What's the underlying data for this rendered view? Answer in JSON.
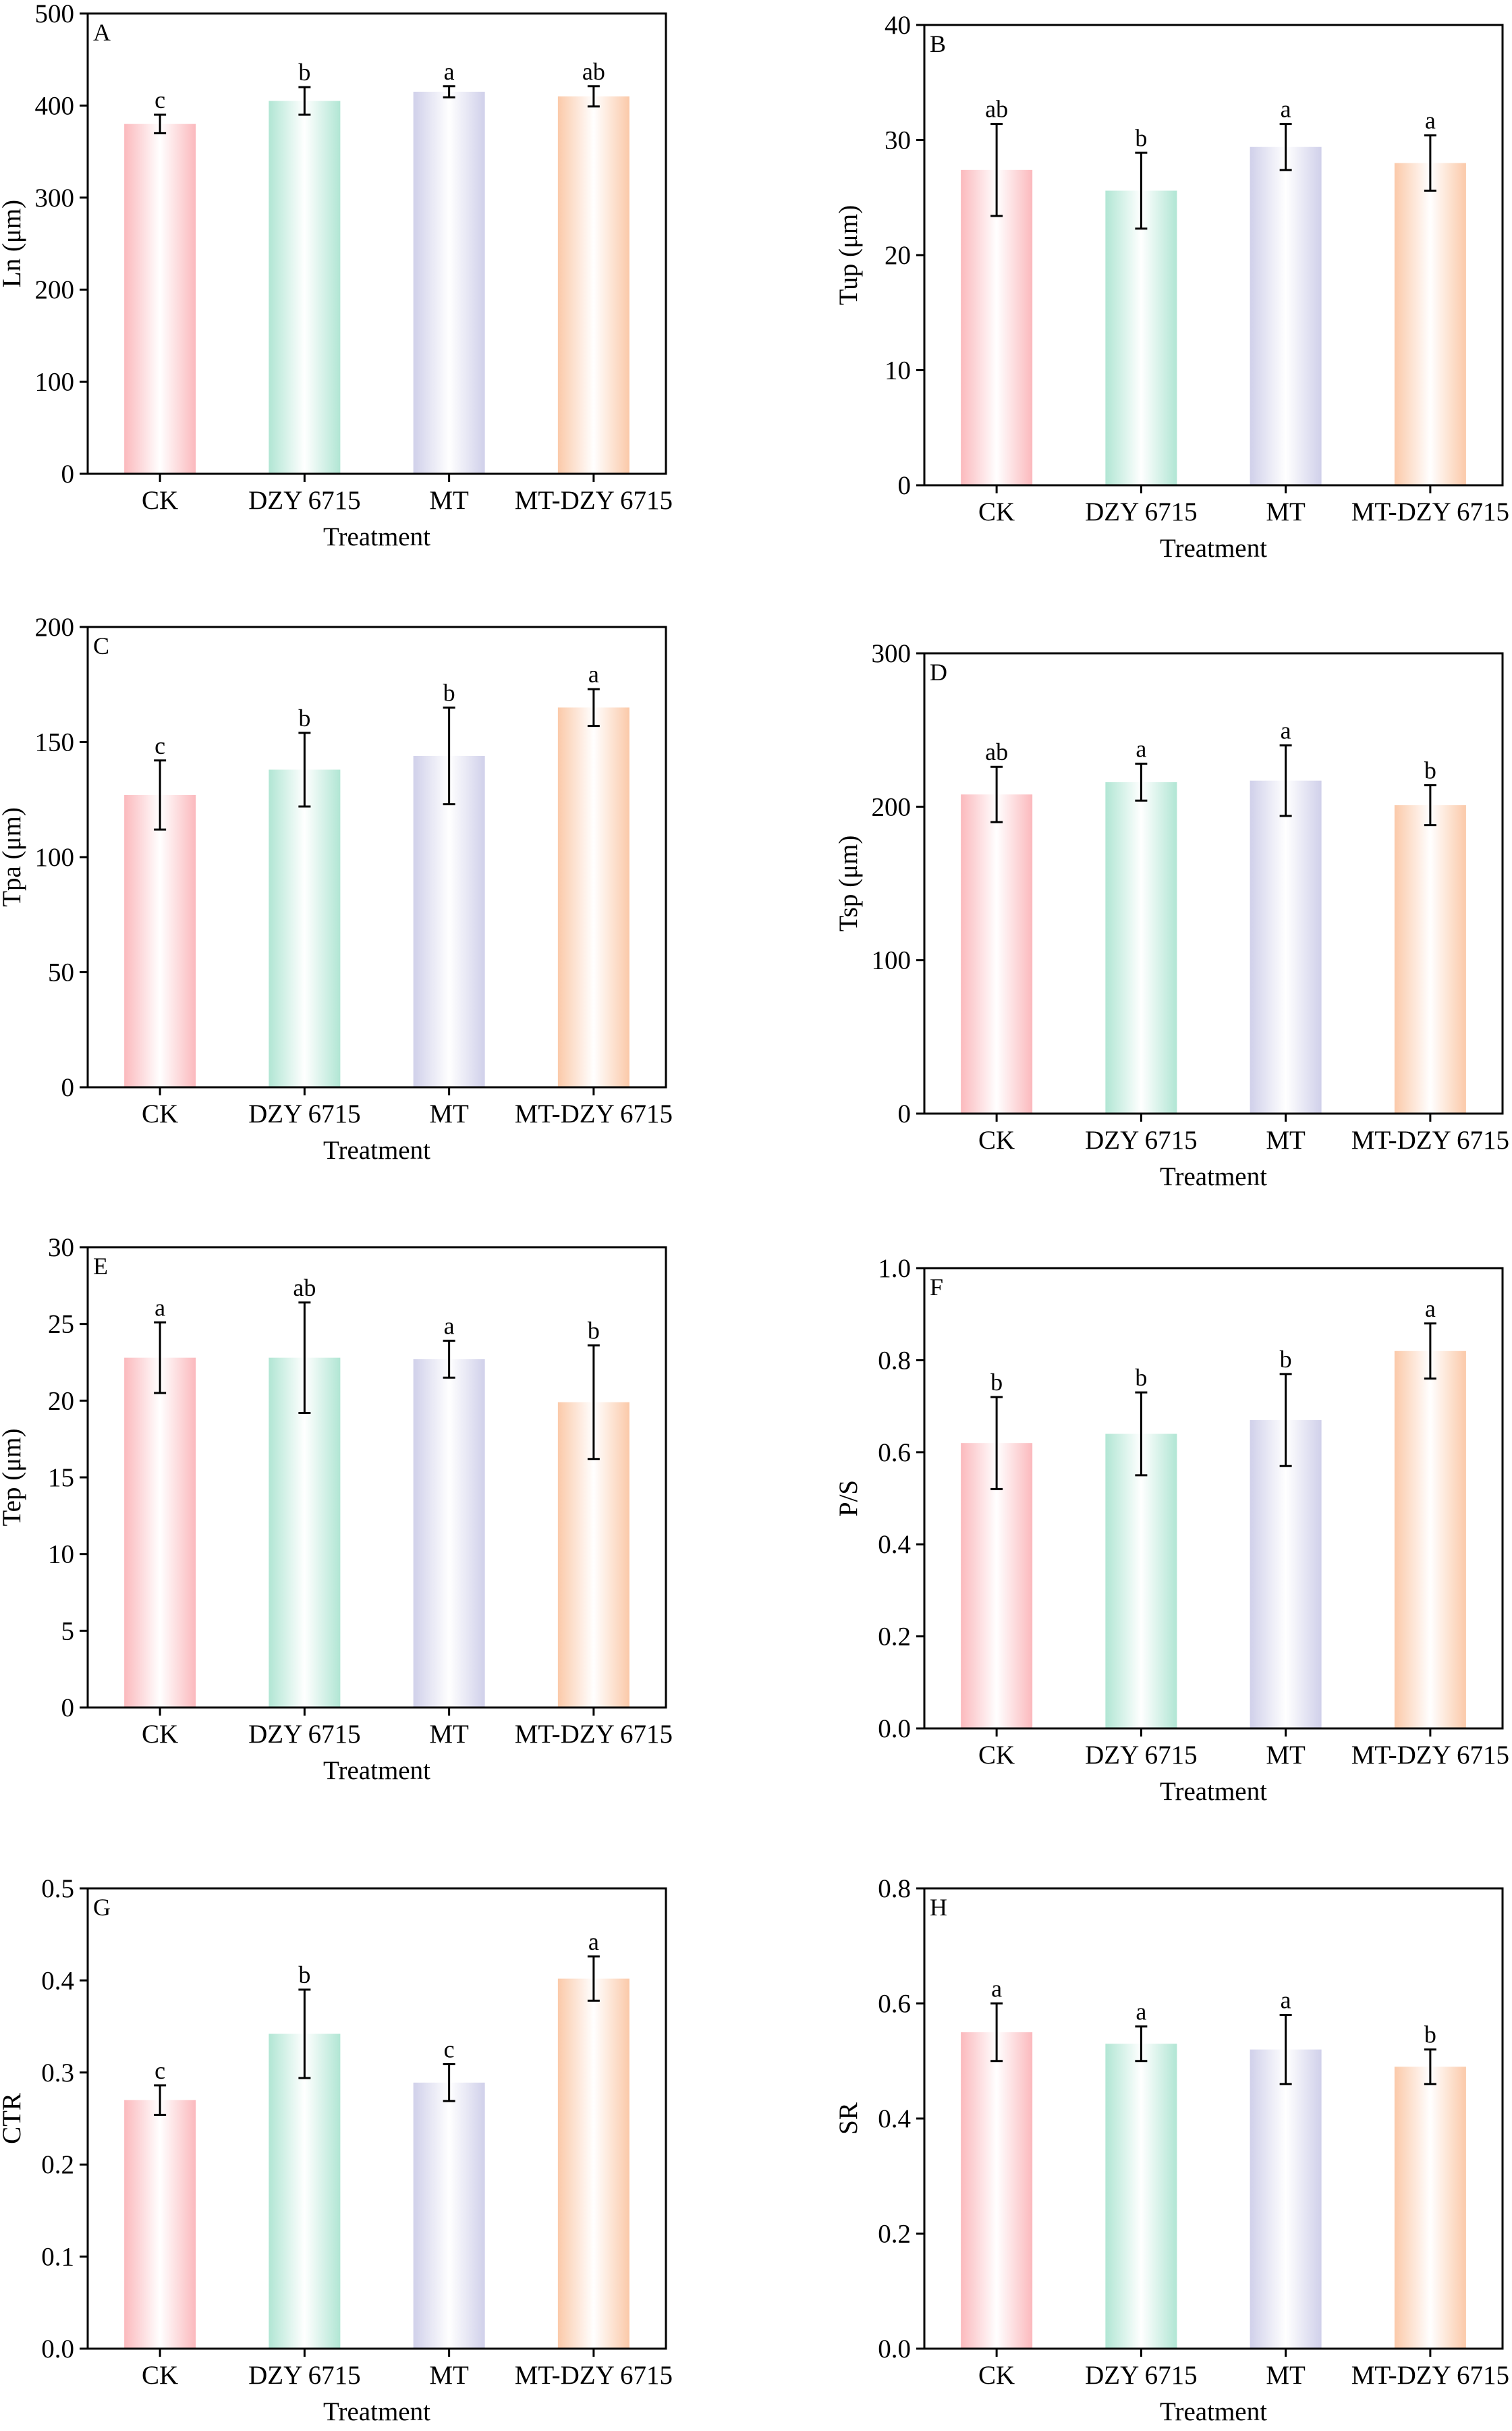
{
  "figure": {
    "colors": {
      "CK": "#fbb9bd",
      "DZY 6715": "#b1e6d4",
      "MT": "#d0d0ea",
      "MT-DZY 6715": "#fbc9a9",
      "axis": "#000000"
    }
  },
  "chart_data": [
    {
      "panel": "A",
      "type": "bar",
      "categories": [
        "CK",
        "DZY 6715",
        "MT",
        "MT-DZY 6715"
      ],
      "values": [
        380,
        405,
        415,
        410
      ],
      "errors": [
        10,
        15,
        6,
        11
      ],
      "letters": [
        "c",
        "b",
        "a",
        "ab"
      ],
      "ylabel": "Ln (μm)",
      "xlabel": "Treatment",
      "ylim": [
        0,
        500
      ],
      "yticks": [
        0,
        100,
        200,
        300,
        400,
        500
      ],
      "ytick_labels": [
        "0",
        "100",
        "200",
        "300",
        "400",
        "500"
      ]
    },
    {
      "panel": "B",
      "type": "bar",
      "categories": [
        "CK",
        "DZY 6715",
        "MT",
        "MT-DZY 6715"
      ],
      "values": [
        27.4,
        25.6,
        29.4,
        28.0
      ],
      "errors": [
        4.0,
        3.3,
        2.0,
        2.4
      ],
      "letters": [
        "ab",
        "b",
        "a",
        "a"
      ],
      "ylabel": "Tup (μm)",
      "xlabel": "Treatment",
      "ylim": [
        0,
        40
      ],
      "yticks": [
        0,
        10,
        20,
        30,
        40
      ],
      "ytick_labels": [
        "0",
        "10",
        "20",
        "30",
        "40"
      ]
    },
    {
      "panel": "C",
      "type": "bar",
      "categories": [
        "CK",
        "DZY 6715",
        "MT",
        "MT-DZY 6715"
      ],
      "values": [
        127,
        138,
        144,
        165
      ],
      "errors": [
        15,
        16,
        21,
        8
      ],
      "letters": [
        "c",
        "b",
        "b",
        "a"
      ],
      "ylabel": "Tpa (μm)",
      "xlabel": "Treatment",
      "ylim": [
        0,
        200
      ],
      "yticks": [
        0,
        50,
        100,
        150,
        200
      ],
      "ytick_labels": [
        "0",
        "50",
        "100",
        "150",
        "200"
      ]
    },
    {
      "panel": "D",
      "type": "bar",
      "categories": [
        "CK",
        "DZY 6715",
        "MT",
        "MT-DZY 6715"
      ],
      "values": [
        208,
        216,
        217,
        201
      ],
      "errors": [
        18,
        12,
        23,
        13
      ],
      "letters": [
        "ab",
        "a",
        "a",
        "b"
      ],
      "ylabel": "Tsp (μm)",
      "xlabel": "Treatment",
      "ylim": [
        0,
        300
      ],
      "yticks": [
        0,
        100,
        200,
        300
      ],
      "ytick_labels": [
        "0",
        "100",
        "200",
        "300"
      ]
    },
    {
      "panel": "E",
      "type": "bar",
      "categories": [
        "CK",
        "DZY 6715",
        "MT",
        "MT-DZY 6715"
      ],
      "values": [
        22.8,
        22.8,
        22.7,
        19.9
      ],
      "errors": [
        2.3,
        3.6,
        1.2,
        3.7
      ],
      "letters": [
        "a",
        "ab",
        "a",
        "b"
      ],
      "ylabel": "Tep (μm)",
      "xlabel": "Treatment",
      "ylim": [
        0,
        30
      ],
      "yticks": [
        0,
        5,
        10,
        15,
        20,
        25,
        30
      ],
      "ytick_labels": [
        "0",
        "5",
        "10",
        "15",
        "20",
        "25",
        "30"
      ]
    },
    {
      "panel": "F",
      "type": "bar",
      "categories": [
        "CK",
        "DZY 6715",
        "MT",
        "MT-DZY 6715"
      ],
      "values": [
        0.62,
        0.64,
        0.67,
        0.82
      ],
      "errors": [
        0.1,
        0.09,
        0.1,
        0.06
      ],
      "letters": [
        "b",
        "b",
        "b",
        "a"
      ],
      "ylabel": "P/S",
      "xlabel": "Treatment",
      "ylim": [
        0,
        1.0
      ],
      "yticks": [
        0,
        0.2,
        0.4,
        0.6,
        0.8,
        1.0
      ],
      "ytick_labels": [
        "0.0",
        "0.2",
        "0.4",
        "0.6",
        "0.8",
        "1.0"
      ]
    },
    {
      "panel": "G",
      "type": "bar",
      "categories": [
        "CK",
        "DZY 6715",
        "MT",
        "MT-DZY 6715"
      ],
      "values": [
        0.27,
        0.342,
        0.289,
        0.402
      ],
      "errors": [
        0.016,
        0.048,
        0.02,
        0.024
      ],
      "letters": [
        "c",
        "b",
        "c",
        "a"
      ],
      "ylabel": "CTR",
      "xlabel": "Treatment",
      "ylim": [
        0,
        0.5
      ],
      "yticks": [
        0,
        0.1,
        0.2,
        0.3,
        0.4,
        0.5
      ],
      "ytick_labels": [
        "0.0",
        "0.1",
        "0.2",
        "0.3",
        "0.4",
        "0.5"
      ]
    },
    {
      "panel": "H",
      "type": "bar",
      "categories": [
        "CK",
        "DZY 6715",
        "MT",
        "MT-DZY 6715"
      ],
      "values": [
        0.55,
        0.53,
        0.52,
        0.49
      ],
      "errors": [
        0.05,
        0.03,
        0.06,
        0.03
      ],
      "letters": [
        "a",
        "a",
        "a",
        "b"
      ],
      "ylabel": "SR",
      "xlabel": "Treatment",
      "ylim": [
        0,
        0.8
      ],
      "yticks": [
        0,
        0.2,
        0.4,
        0.6,
        0.8
      ],
      "ytick_labels": [
        "0.0",
        "0.2",
        "0.4",
        "0.6",
        "0.8"
      ]
    }
  ]
}
